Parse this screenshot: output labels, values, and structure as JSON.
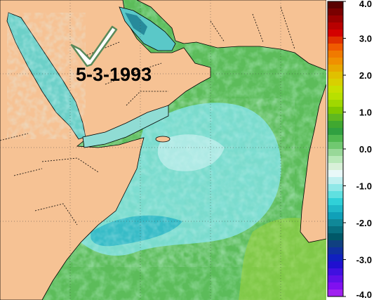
{
  "map": {
    "date_label": "5-3-1993",
    "land_color": "#f6c294",
    "sea_base_color": "#6cc66a",
    "overlay_icon": "checkmark-icon"
  },
  "colorbar": {
    "min": -4.0,
    "max": 4.0,
    "tick_labels": [
      "4.0",
      "3.0",
      "2.0",
      "1.0",
      "0.0",
      "-1.0",
      "-2.0",
      "-3.0",
      "-4.0"
    ],
    "tick_values": [
      4,
      3,
      2,
      1,
      0,
      -1,
      -2,
      -3,
      -4
    ],
    "colors_top_to_bottom": [
      "#5a0000",
      "#7a0000",
      "#9a0000",
      "#b80000",
      "#d40000",
      "#e03000",
      "#f05a00",
      "#f07a00",
      "#f09000",
      "#e8a800",
      "#e0c000",
      "#d8d000",
      "#c8e000",
      "#b8e000",
      "#a0d800",
      "#80c800",
      "#60b820",
      "#40a830",
      "#30a040",
      "#50b850",
      "#70c870",
      "#98d898",
      "#b8e8b8",
      "#d8f0d8",
      "#e8f8f8",
      "#c0f0f0",
      "#90e8e8",
      "#60e0e0",
      "#30d0d8",
      "#20b8c8",
      "#10a0b8",
      "#108898",
      "#087080",
      "#005868",
      "#104080",
      "#1030a0",
      "#1020c0",
      "#2010d0",
      "#4010e0",
      "#6010e8",
      "#8010f0",
      "#a020f0"
    ]
  }
}
